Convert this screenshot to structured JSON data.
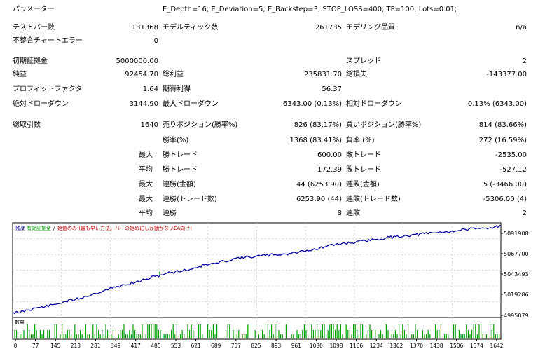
{
  "report": {
    "params_label": "パラメーター",
    "params_value": "E_Depth=16; E_Deviation=5; E_Backstep=3; STOP_LOSS=400; TP=100; Lots=0.01;",
    "bars_label": "テストバー数",
    "bars_value": "131368",
    "ticks_label": "モデルティック数",
    "ticks_value": "261735",
    "quality_label": "モデリング品質",
    "quality_value": "n/a",
    "mismatch_label": "不整合チャートエラー",
    "mismatch_value": "0",
    "deposit_label": "初期証拠金",
    "deposit_value": "5000000.00",
    "spread_label": "スプレッド",
    "spread_value": "2",
    "netprofit_label": "純益",
    "netprofit_value": "92454.70",
    "grossprofit_label": "総利益",
    "grossprofit_value": "235831.70",
    "grossloss_label": "総損失",
    "grossloss_value": "-143377.00",
    "pf_label": "プロフィットファクタ",
    "pf_value": "1.64",
    "payoff_label": "期待利得",
    "payoff_value": "56.37",
    "absdd_label": "絶対ドローダウン",
    "absdd_value": "3144.90",
    "maxdd_label": "最大ドローダウン",
    "maxdd_value": "6343.00 (0.13%)",
    "reldd_label": "相対ドローダウン",
    "reldd_value": "0.13% (6343.00)",
    "trades_label": "総取引数",
    "trades_value": "1640",
    "short_label": "売りポジション(勝率%)",
    "short_value": "826 (83.17%)",
    "long_label": "買いポジション(勝率%)",
    "long_value": "814 (83.66%)",
    "profit_trades_label": "勝率(%)",
    "profit_trades_value": "1368 (83.41%)",
    "loss_trades_label": "負率 (%)",
    "loss_trades_value": "272 (16.59%)",
    "max_label": "最大",
    "avg_label": "平均",
    "win_trade_label": "勝トレード",
    "lose_trade_label": "敗トレード",
    "largest_win": "600.00",
    "largest_loss": "-2535.00",
    "avg_win": "172.39",
    "avg_loss": "-527.12",
    "consec_wins_money_label": "連勝(金額)",
    "consec_losses_money_label": "連敗(金額)",
    "consec_wins_money": "44 (6253.90)",
    "consec_losses_money": "5 (-3466.00)",
    "consec_profit_label": "連勝(トレード数)",
    "consec_loss_label": "連敗(トレード数)",
    "consec_profit": "6253.90 (44)",
    "consec_loss": "-5306.00 (4)",
    "avg_wins_label": "連勝",
    "avg_losses_label": "連敗",
    "avg_wins": "8",
    "avg_losses": "2"
  },
  "chart_data": {
    "type": "line",
    "legend": {
      "balance": "残高",
      "equity": "有効証拠金",
      "note": "始値のみ (最も早い方法。バーの始めにしか動かないEA向け)"
    },
    "volume_label": "数量",
    "y_ticks": [
      "5091908",
      "5067700",
      "5043493",
      "5019286",
      "4995079"
    ],
    "x_ticks": [
      "0",
      "77",
      "145",
      "213",
      "281",
      "349",
      "417",
      "485",
      "553",
      "621",
      "689",
      "757",
      "825",
      "893",
      "961",
      "1030",
      "1098",
      "1166",
      "1234",
      "1302",
      "1370",
      "1438",
      "1506",
      "1574",
      "1642"
    ],
    "ylim": [
      4995079,
      5095000
    ],
    "xlim": [
      0,
      1660
    ],
    "colors": {
      "balance": "#0000a0",
      "equity": "#00a000",
      "volume": "#00a000",
      "note": "#c00000"
    },
    "series": [
      {
        "name": "残高",
        "x": [
          0,
          20,
          50,
          77,
          110,
          145,
          180,
          213,
          250,
          281,
          320,
          349,
          380,
          417,
          450,
          485,
          520,
          553,
          590,
          621,
          650,
          689,
          720,
          757,
          790,
          825,
          860,
          893,
          930,
          961,
          1000,
          1030,
          1060,
          1098,
          1130,
          1166,
          1200,
          1234,
          1270,
          1302,
          1340,
          1370,
          1400,
          1438,
          1470,
          1506,
          1540,
          1574,
          1610,
          1642,
          1660
        ],
        "y": [
          5000500,
          5000000,
          5003000,
          5005000,
          5006500,
          5009000,
          5012000,
          5014000,
          5017500,
          5020500,
          5024500,
          5027000,
          5029500,
          5032000,
          5035000,
          5038500,
          5041500,
          5043500,
          5045000,
          5047500,
          5050500,
          5052000,
          5054500,
          5057500,
          5058500,
          5059500,
          5060500,
          5061500,
          5062000,
          5063500,
          5066000,
          5067000,
          5069500,
          5072000,
          5073500,
          5074500,
          5076000,
          5077500,
          5079000,
          5080500,
          5081500,
          5082500,
          5083500,
          5084500,
          5085500,
          5086500,
          5088000,
          5088500,
          5089500,
          5091000,
          5091908
        ]
      }
    ]
  }
}
